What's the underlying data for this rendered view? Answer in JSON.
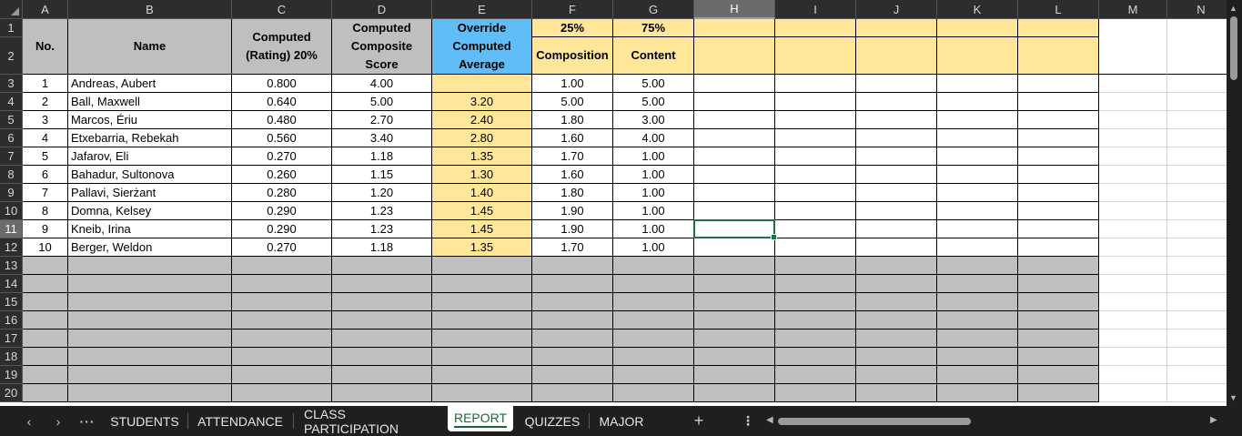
{
  "columns": [
    "A",
    "B",
    "C",
    "D",
    "E",
    "F",
    "G",
    "H",
    "I",
    "J",
    "K",
    "L",
    "M",
    "N"
  ],
  "selected_column": "H",
  "selected_row": 11,
  "row_numbers": [
    1,
    2,
    3,
    4,
    5,
    6,
    7,
    8,
    9,
    10,
    11,
    12,
    13,
    14,
    15,
    16,
    17,
    18,
    19,
    20
  ],
  "header": {
    "no_label": "No.",
    "name_label": "Name",
    "computed_rating": "Computed (Rating) 20%",
    "computed_composite": "Computed Composite Score",
    "override_label": "Override Computed Average",
    "f1_percent": "25%",
    "g1_percent": "75%",
    "f2_label": "Composition",
    "g2_label": "Content"
  },
  "rows": [
    {
      "no": "1",
      "name": "Andreas, Aubert",
      "rating": "0.800",
      "composite": "4.00",
      "override": "",
      "composition": "1.00",
      "content": "5.00"
    },
    {
      "no": "2",
      "name": "Ball, Maxwell",
      "rating": "0.640",
      "composite": "5.00",
      "override": "3.20",
      "composition": "5.00",
      "content": "5.00"
    },
    {
      "no": "3",
      "name": "Marcos, Ériu",
      "rating": "0.480",
      "composite": "2.70",
      "override": "2.40",
      "composition": "1.80",
      "content": "3.00"
    },
    {
      "no": "4",
      "name": "Etxebarria, Rebekah",
      "rating": "0.560",
      "composite": "3.40",
      "override": "2.80",
      "composition": "1.60",
      "content": "4.00"
    },
    {
      "no": "5",
      "name": "Jafarov, Eli",
      "rating": "0.270",
      "composite": "1.18",
      "override": "1.35",
      "composition": "1.70",
      "content": "1.00"
    },
    {
      "no": "6",
      "name": "Bahadur, Sultonova",
      "rating": "0.260",
      "composite": "1.15",
      "override": "1.30",
      "composition": "1.60",
      "content": "1.00"
    },
    {
      "no": "7",
      "name": "Pallavi, Sierżant",
      "rating": "0.280",
      "composite": "1.20",
      "override": "1.40",
      "composition": "1.80",
      "content": "1.00"
    },
    {
      "no": "8",
      "name": "Domna, Kelsey",
      "rating": "0.290",
      "composite": "1.23",
      "override": "1.45",
      "composition": "1.90",
      "content": "1.00"
    },
    {
      "no": "9",
      "name": "Kneib, Irina",
      "rating": "0.290",
      "composite": "1.23",
      "override": "1.45",
      "composition": "1.90",
      "content": "1.00"
    },
    {
      "no": "10",
      "name": "Berger, Weldon",
      "rating": "0.270",
      "composite": "1.18",
      "override": "1.35",
      "composition": "1.70",
      "content": "1.00"
    }
  ],
  "tabs": [
    "STUDENTS",
    "ATTENDANCE",
    "CLASS PARTICIPATION",
    "REPORT",
    "QUIZZES",
    "MAJOR"
  ],
  "active_tab": "REPORT",
  "colors": {
    "header_gray": "#bfbfbf",
    "override_blue": "#5fbef7",
    "highlight_yellow": "#ffe699",
    "empty_gray": "#bfbfbf",
    "selection_green": "#1e7145"
  },
  "icons": {
    "prev_sheet": "chevron-left-icon",
    "next_sheet": "chevron-right-icon",
    "more_sheets": "ellipsis-icon",
    "add_sheet": "plus-icon",
    "options": "vertical-ellipsis-icon"
  }
}
